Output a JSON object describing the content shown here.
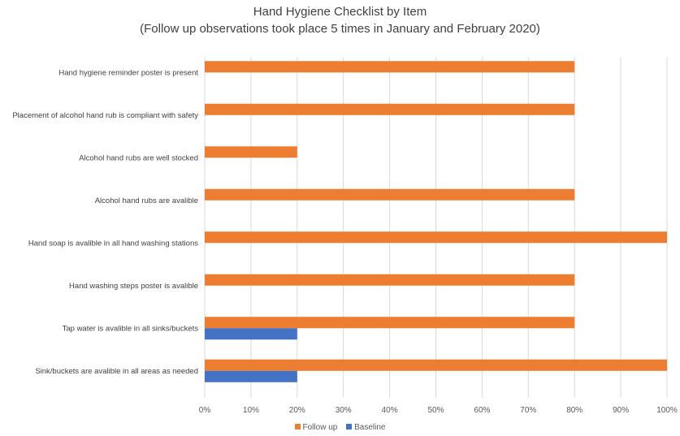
{
  "chart_data": {
    "type": "bar",
    "orientation": "horizontal",
    "title": "Hand Hygiene Checklist by Item",
    "subtitle": "(Follow up observations took place 5 times in January and February 2020)",
    "categories": [
      "Hand hygiene reminder poster is present",
      "Placement of alcohol hand rub is compliant with safety",
      "Alcohol hand rubs are well stocked",
      "Alcohol hand rubs are avalible",
      "Hand soap is avalible in all hand washing stations",
      "Hand washing steps poster is avalible",
      "Tap water is avalible in all sinks/buckets",
      "Sink/buckets are avalible in all areas as needed"
    ],
    "series": [
      {
        "name": "Follow up",
        "color": "#ED7D31",
        "values": [
          80,
          80,
          20,
          80,
          100,
          80,
          80,
          100
        ]
      },
      {
        "name": "Baseline",
        "color": "#4472C4",
        "values": [
          0,
          0,
          0,
          0,
          0,
          0,
          20,
          20
        ]
      }
    ],
    "xlim": [
      0,
      100
    ],
    "xticks": [
      "0%",
      "10%",
      "20%",
      "30%",
      "40%",
      "50%",
      "60%",
      "70%",
      "80%",
      "90%",
      "100%"
    ],
    "grid": true,
    "legend_position": "bottom"
  }
}
